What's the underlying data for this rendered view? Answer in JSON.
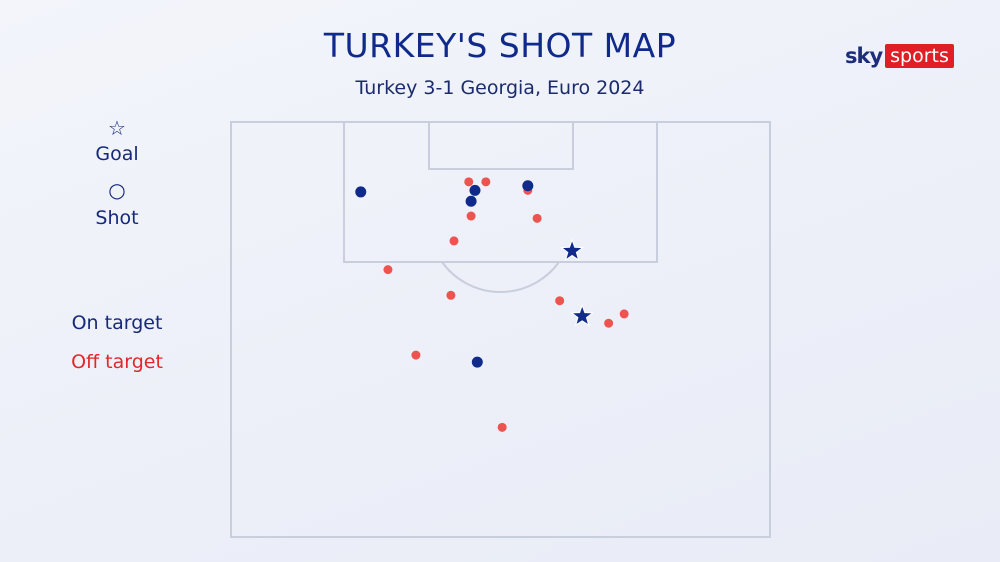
{
  "title": "TURKEY'S SHOT MAP",
  "subtitle": "Turkey 3-1 Georgia, Euro 2024",
  "logo": {
    "part1": "sky",
    "part2": "sports"
  },
  "legend": {
    "goal": "Goal",
    "shot": "Shot",
    "on_target": "On target",
    "off_target": "Off target",
    "goal_icon": "star-icon",
    "shot_icon": "circle-icon"
  },
  "colors": {
    "on_target": "#0f2a8a",
    "off_target": "#ef5350",
    "lines": "#c9cedd"
  },
  "chart_data": {
    "type": "scatter",
    "units": "metres (x from left touchline, y from goal line)",
    "points": [
      {
        "x": 16.7,
        "y": 9.0,
        "result": "on_target",
        "kind": "shot"
      },
      {
        "x": 31.4,
        "y": 8.8,
        "result": "on_target",
        "kind": "shot"
      },
      {
        "x": 30.9,
        "y": 10.2,
        "result": "on_target",
        "kind": "shot"
      },
      {
        "x": 38.2,
        "y": 8.2,
        "result": "on_target",
        "kind": "shot"
      },
      {
        "x": 31.7,
        "y": 30.9,
        "result": "on_target",
        "kind": "shot"
      },
      {
        "x": 30.6,
        "y": 7.7,
        "result": "off_target",
        "kind": "shot"
      },
      {
        "x": 32.8,
        "y": 7.7,
        "result": "off_target",
        "kind": "shot"
      },
      {
        "x": 38.2,
        "y": 8.8,
        "result": "off_target",
        "kind": "shot"
      },
      {
        "x": 30.9,
        "y": 12.1,
        "result": "off_target",
        "kind": "shot"
      },
      {
        "x": 39.4,
        "y": 12.4,
        "result": "off_target",
        "kind": "shot"
      },
      {
        "x": 28.7,
        "y": 15.3,
        "result": "off_target",
        "kind": "shot"
      },
      {
        "x": 20.2,
        "y": 19.0,
        "result": "off_target",
        "kind": "shot"
      },
      {
        "x": 28.3,
        "y": 22.3,
        "result": "off_target",
        "kind": "shot"
      },
      {
        "x": 42.3,
        "y": 23.0,
        "result": "off_target",
        "kind": "shot"
      },
      {
        "x": 48.6,
        "y": 25.9,
        "result": "off_target",
        "kind": "shot"
      },
      {
        "x": 50.6,
        "y": 24.7,
        "result": "off_target",
        "kind": "shot"
      },
      {
        "x": 23.8,
        "y": 30.0,
        "result": "off_target",
        "kind": "shot"
      },
      {
        "x": 34.9,
        "y": 39.3,
        "result": "off_target",
        "kind": "shot"
      },
      {
        "x": 43.9,
        "y": 16.6,
        "result": "on_target",
        "kind": "goal"
      },
      {
        "x": 45.2,
        "y": 25.0,
        "result": "on_target",
        "kind": "goal"
      }
    ]
  }
}
